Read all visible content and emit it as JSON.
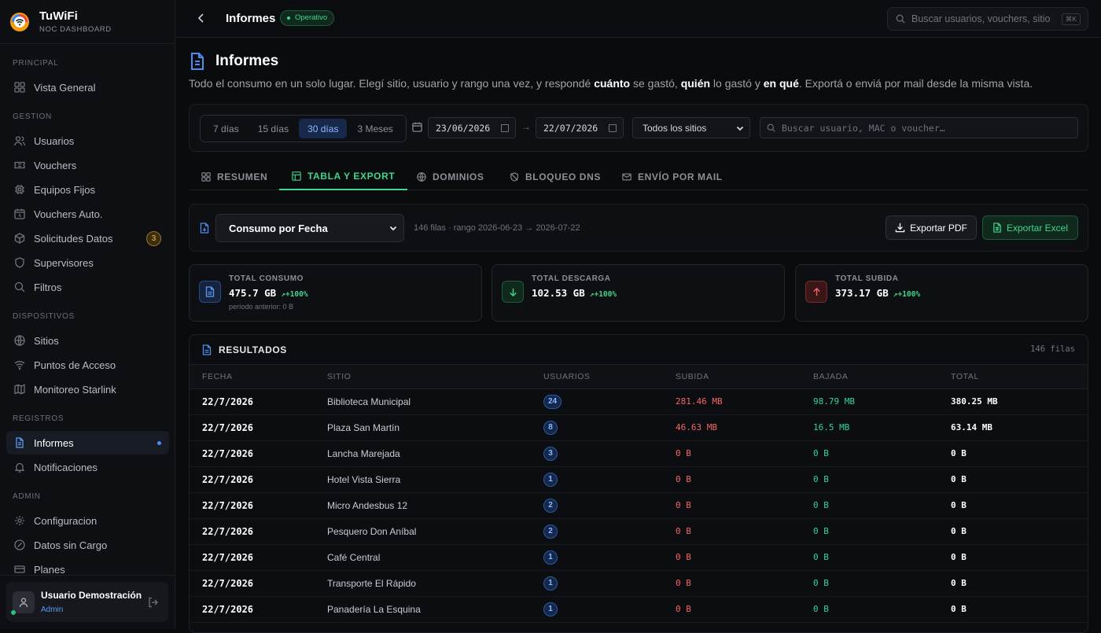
{
  "app": {
    "name": "TuWiFi",
    "subtitle": "NOC DASHBOARD"
  },
  "sidebar": {
    "sections": [
      {
        "label": "PRINCIPAL",
        "items": [
          {
            "label": "Vista General",
            "icon": "grid-icon"
          }
        ]
      },
      {
        "label": "GESTION",
        "items": [
          {
            "label": "Usuarios",
            "icon": "users-icon"
          },
          {
            "label": "Vouchers",
            "icon": "ticket-icon"
          },
          {
            "label": "Equipos Fijos",
            "icon": "chip-icon"
          },
          {
            "label": "Vouchers Auto.",
            "icon": "clock-icon"
          },
          {
            "label": "Solicitudes Datos",
            "icon": "box-icon",
            "badge": "3"
          },
          {
            "label": "Supervisores",
            "icon": "shield-icon"
          },
          {
            "label": "Filtros",
            "icon": "search-icon"
          }
        ]
      },
      {
        "label": "DISPOSITIVOS",
        "items": [
          {
            "label": "Sitios",
            "icon": "globe-icon"
          },
          {
            "label": "Puntos de Acceso",
            "icon": "wifi-icon"
          },
          {
            "label": "Monitoreo Starlink",
            "icon": "map-icon"
          }
        ]
      },
      {
        "label": "REGISTROS",
        "items": [
          {
            "label": "Informes",
            "icon": "document-icon",
            "active": true
          },
          {
            "label": "Notificaciones",
            "icon": "bell-icon"
          }
        ]
      },
      {
        "label": "ADMIN",
        "items": [
          {
            "label": "Configuracion",
            "icon": "gear-icon"
          },
          {
            "label": "Datos sin Cargo",
            "icon": "tag-icon"
          },
          {
            "label": "Planes",
            "icon": "card-icon"
          }
        ]
      }
    ],
    "user": {
      "name": "Usuario Demostración",
      "role": "Admin"
    }
  },
  "topbar": {
    "title": "Informes",
    "status": "Operativo",
    "search_placeholder": "Buscar usuarios, vouchers, sitio",
    "shortcut": "⌘K"
  },
  "page": {
    "title": "Informes",
    "description": {
      "p1": "Todo el consumo en un solo lugar. Elegí sitio, usuario y rango una vez, y respondé ",
      "b1": "cuánto",
      "p2": " se gastó, ",
      "b2": "quién",
      "p3": " lo gastó y ",
      "b3": "en qué",
      "p4": ". Exportá o enviá por mail desde la misma vista."
    }
  },
  "filters": {
    "ranges": [
      "7 días",
      "15 días",
      "30 días",
      "3 Meses"
    ],
    "active_range": "30 días",
    "date_from": "23/06/2026",
    "date_to": "22/07/2026",
    "arrow": "→",
    "site": "Todos los sitios",
    "search_placeholder": "Buscar usuario, MAC o voucher…"
  },
  "tabs": [
    "RESUMEN",
    "TABLA Y EXPORT",
    "DOMINIOS",
    "BLOQUEO DNS",
    "ENVÍO POR MAIL"
  ],
  "active_tab": "TABLA Y EXPORT",
  "report": {
    "type": "Consumo por Fecha",
    "meta": "146 filas · rango 2026-06-23 → 2026-07-22",
    "export_pdf": "Exportar PDF",
    "export_excel": "Exportar Excel"
  },
  "stats": [
    {
      "label": "TOTAL CONSUMO",
      "value": "475.7 GB",
      "delta": "+100%",
      "prev": "período anterior: 0 B",
      "color": "#4b8df0"
    },
    {
      "label": "TOTAL DESCARGA",
      "value": "102.53 GB",
      "delta": "+100%",
      "color": "#34d399"
    },
    {
      "label": "TOTAL SUBIDA",
      "value": "373.17 GB",
      "delta": "+100%",
      "color": "#f26666"
    }
  ],
  "results": {
    "title": "RESULTADOS",
    "count": "146 filas",
    "columns": [
      "FECHA",
      "SITIO",
      "USUARIOS",
      "SUBIDA",
      "BAJADA",
      "TOTAL"
    ],
    "rows": [
      [
        "22/7/2026",
        "Biblioteca Municipal",
        "24",
        "281.46 MB",
        "98.79 MB",
        "380.25 MB"
      ],
      [
        "22/7/2026",
        "Plaza San Martín",
        "8",
        "46.63 MB",
        "16.5 MB",
        "63.14 MB"
      ],
      [
        "22/7/2026",
        "Lancha Marejada",
        "3",
        "0 B",
        "0 B",
        "0 B"
      ],
      [
        "22/7/2026",
        "Hotel Vista Sierra",
        "1",
        "0 B",
        "0 B",
        "0 B"
      ],
      [
        "22/7/2026",
        "Micro Andesbus 12",
        "2",
        "0 B",
        "0 B",
        "0 B"
      ],
      [
        "22/7/2026",
        "Pesquero Don Aníbal",
        "2",
        "0 B",
        "0 B",
        "0 B"
      ],
      [
        "22/7/2026",
        "Café Central",
        "1",
        "0 B",
        "0 B",
        "0 B"
      ],
      [
        "22/7/2026",
        "Transporte El Rápido",
        "1",
        "0 B",
        "0 B",
        "0 B"
      ],
      [
        "22/7/2026",
        "Panadería La Esquina",
        "1",
        "0 B",
        "0 B",
        "0 B"
      ]
    ]
  }
}
